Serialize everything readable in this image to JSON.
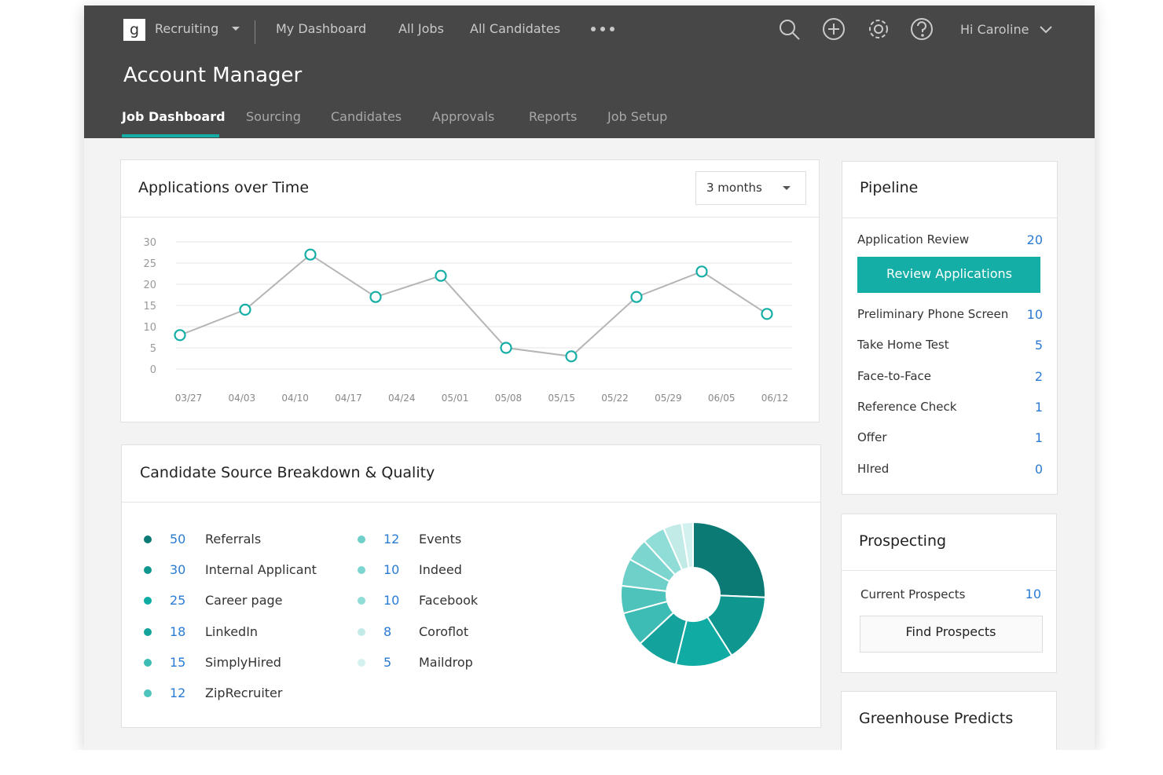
{
  "nav": {
    "logo": "g",
    "app": "Recruiting",
    "links": [
      "My Dashboard",
      "All Jobs",
      "All Candidates"
    ],
    "user": "Hi Caroline"
  },
  "page_title": "Account Manager",
  "tabs": [
    "Job Dashboard",
    "Sourcing",
    "Candidates",
    "Approvals",
    "Reports",
    "Job Setup"
  ],
  "chart_data": [
    {
      "type": "line",
      "title": "Applications over Time",
      "range": "3 months",
      "xticks": [
        "03/27",
        "04/03",
        "04/10",
        "04/17",
        "04/24",
        "05/01",
        "05/08",
        "05/15",
        "05/22",
        "05/29",
        "06/05",
        "06/12"
      ],
      "values": [
        8,
        14,
        27,
        17,
        22,
        5,
        3,
        17,
        23,
        13
      ],
      "color": "#b5b5b5",
      "marker_color": "#14aea6",
      "ylim": [
        0,
        30
      ],
      "yticks": [
        0,
        5,
        10,
        15,
        20,
        25,
        30
      ],
      "grid": true
    },
    {
      "type": "pie",
      "title": "Candidate Source Breakdown & Quality",
      "donut": true,
      "categories": [
        "Referrals",
        "Internal Applicant",
        "Career page",
        "LinkedIn",
        "SimplyHired",
        "ZipRecruiter",
        "Events",
        "Indeed",
        "Facebook",
        "Coroflot",
        "Maildrop"
      ],
      "values": [
        50,
        30,
        25,
        18,
        15,
        12,
        12,
        10,
        10,
        8,
        5
      ],
      "colors": [
        "#0b7a75",
        "#0e968f",
        "#10aca4",
        "#13a39c",
        "#3cbcb4",
        "#4ec3bc",
        "#6fcfc9",
        "#7dd5d0",
        "#90dcd7",
        "#c2ebe8",
        "#d3f1ee"
      ]
    }
  ],
  "pipeline": {
    "title": "Pipeline",
    "action": "Review Applications",
    "stages": [
      {
        "name": "Application Review",
        "count": 20
      },
      {
        "name": "Preliminary Phone Screen",
        "count": 10
      },
      {
        "name": "Take Home Test",
        "count": 5
      },
      {
        "name": "Face-to-Face",
        "count": 2
      },
      {
        "name": "Reference Check",
        "count": 1
      },
      {
        "name": "Offer",
        "count": 1
      },
      {
        "name": "HIred",
        "count": 0
      }
    ]
  },
  "prospecting": {
    "title": "Prospecting",
    "action": "Find Prospects",
    "items": [
      {
        "name": "Current Prospects",
        "count": 10
      }
    ]
  },
  "predicts": {
    "title": "Greenhouse Predicts"
  }
}
